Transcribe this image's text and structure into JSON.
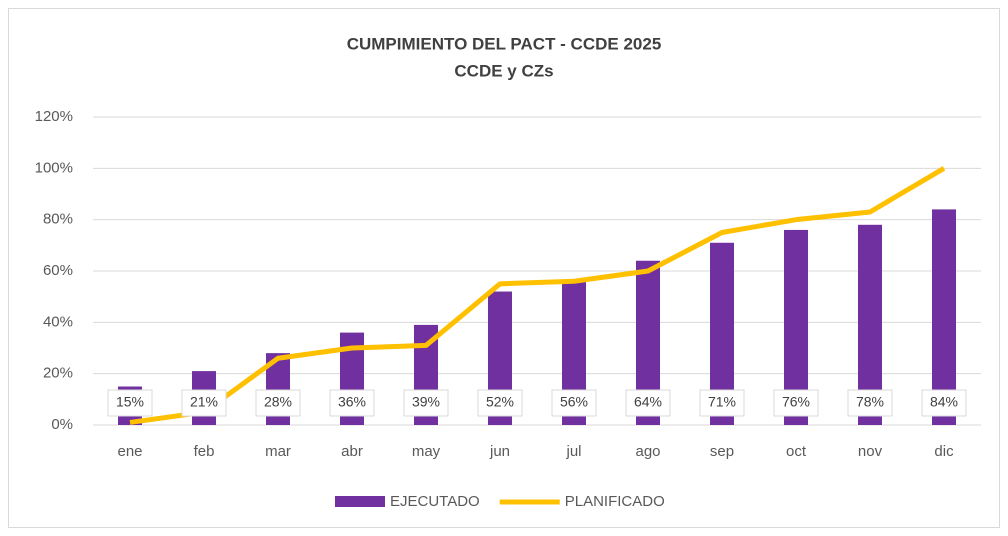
{
  "chart_data": {
    "type": "bar-line",
    "title": "CUMPIMIENTO DEL PACT - CCDE 2025",
    "subtitle": "CCDE y CZs",
    "categories": [
      "ene",
      "feb",
      "mar",
      "abr",
      "may",
      "jun",
      "jul",
      "ago",
      "sep",
      "oct",
      "nov",
      "dic"
    ],
    "series": [
      {
        "name": "EJECUTADO",
        "type": "bar",
        "color": "#7030a0",
        "values": [
          15,
          21,
          28,
          36,
          39,
          52,
          56,
          64,
          71,
          76,
          78,
          84
        ],
        "value_labels": [
          "15%",
          "21%",
          "28%",
          "36%",
          "39%",
          "52%",
          "56%",
          "64%",
          "71%",
          "76%",
          "78%",
          "84%"
        ]
      },
      {
        "name": "PLANIFICADO",
        "type": "line",
        "color": "#ffc000",
        "values": [
          1,
          5,
          26,
          30,
          31,
          55,
          56,
          60,
          75,
          80,
          83,
          100
        ]
      }
    ],
    "ylim": [
      0,
      120
    ],
    "yticks": [
      {
        "value": 0,
        "label": "0%"
      },
      {
        "value": 20,
        "label": "20%"
      },
      {
        "value": 40,
        "label": "40%"
      },
      {
        "value": 60,
        "label": "60%"
      },
      {
        "value": 80,
        "label": "80%"
      },
      {
        "value": 100,
        "label": "100%"
      },
      {
        "value": 120,
        "label": "120%"
      }
    ],
    "grid": true,
    "legend": "bottom"
  }
}
